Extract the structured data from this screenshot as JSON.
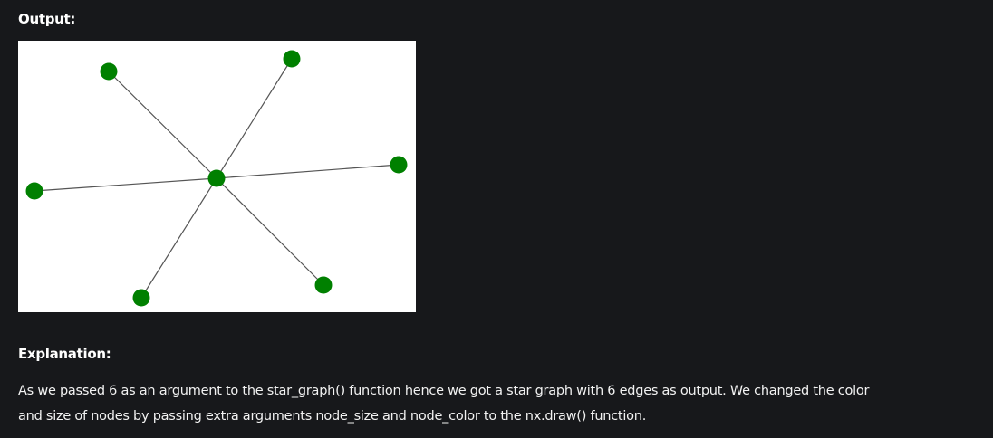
{
  "output_heading": "Output:",
  "explanation_heading": "Explanation:",
  "explanation": {
    "line1": "As we passed 6 as an argument to the star_graph() function hence we got a star graph with 6 edges as output. We changed the color",
    "line2": "and size of nodes by passing extra arguments node_size and node_color to the nx.draw() function."
  },
  "graph": {
    "type": "star_graph",
    "edge_count": 6,
    "node_color": "#008000",
    "edge_color": "#555555",
    "background": "#ffffff"
  },
  "colors": {
    "page_background": "#17181b",
    "text": "#ffffff"
  }
}
